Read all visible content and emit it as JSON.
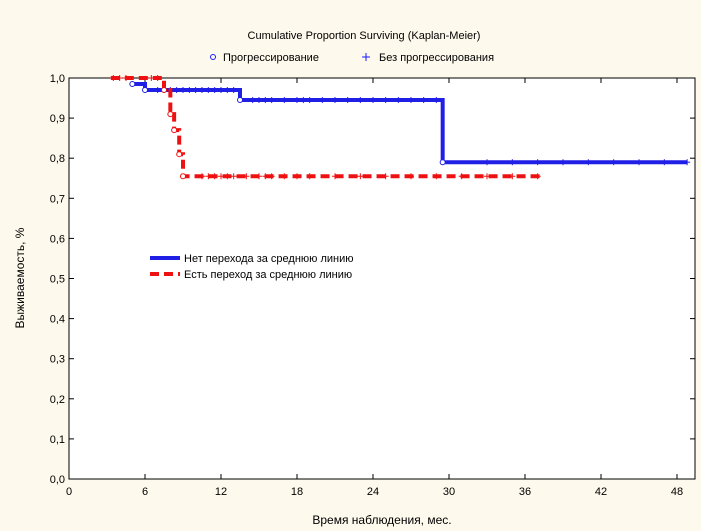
{
  "chart_data": {
    "type": "line",
    "title": "Cumulative Proportion Surviving (Kaplan-Meier)",
    "xlabel": "Время наблюдения, мес.",
    "ylabel": "Выживаемость, %",
    "xlim": [
      0,
      50
    ],
    "ylim": [
      0,
      1.0
    ],
    "x_ticks": [
      0,
      6,
      12,
      18,
      24,
      30,
      36,
      42,
      48
    ],
    "x_tick_labels": [
      "0",
      "6",
      "12",
      "18",
      "24",
      "30",
      "36",
      "42",
      "48"
    ],
    "y_ticks": [
      0,
      0.1,
      0.2,
      0.3,
      0.4,
      0.5,
      0.6,
      0.7,
      0.8,
      0.9,
      1.0
    ],
    "y_tick_labels": [
      "0,0",
      "0,1",
      "0,2",
      "0,3",
      "0,4",
      "0,5",
      "0,6",
      "0,7",
      "0,8",
      "0,9",
      "1,0"
    ],
    "grid": false,
    "marker_legend": [
      {
        "symbol": "o",
        "label": "Прогрессирование",
        "color": "#1a1aff"
      },
      {
        "symbol": "+",
        "label": "Без прогрессирования",
        "color": "#1a1aff"
      }
    ],
    "legend_position": "center-left",
    "series": [
      {
        "name": "Нет перехода за среднюю линию",
        "color": "#1f1fe6",
        "style": "solid",
        "x": [
          5.0,
          5.0,
          6.0,
          6.0,
          13.5,
          13.5,
          29.5,
          29.5,
          48.8
        ],
        "y": [
          0.985,
          0.985,
          0.985,
          0.97,
          0.97,
          0.945,
          0.945,
          0.79,
          0.79
        ],
        "events_x": [
          5.0,
          6.0,
          13.5,
          29.5
        ],
        "events_y": [
          0.985,
          0.97,
          0.945,
          0.79
        ],
        "censored_x": [
          7.0,
          7.5,
          8.0,
          8.5,
          9.0,
          9.5,
          10.0,
          10.5,
          11.0,
          11.5,
          12.0,
          12.5,
          13.0,
          14.5,
          15.0,
          15.5,
          16.0,
          17.0,
          18.0,
          18.5,
          19.0,
          20.0,
          21.0,
          22.0,
          23.0,
          24.0,
          25.0,
          26.0,
          27.0,
          28.0,
          29.0,
          33.0,
          35.0,
          37.0,
          39.0,
          41.0,
          43.0,
          45.0,
          47.0,
          48.8
        ],
        "censored_y": [
          0.97,
          0.97,
          0.97,
          0.97,
          0.97,
          0.97,
          0.97,
          0.97,
          0.97,
          0.97,
          0.97,
          0.97,
          0.97,
          0.945,
          0.945,
          0.945,
          0.945,
          0.945,
          0.945,
          0.945,
          0.945,
          0.945,
          0.945,
          0.945,
          0.945,
          0.945,
          0.945,
          0.945,
          0.945,
          0.945,
          0.945,
          0.79,
          0.79,
          0.79,
          0.79,
          0.79,
          0.79,
          0.79,
          0.79,
          0.79
        ]
      },
      {
        "name": "Есть переход за среднюю линию",
        "color": "#ee1111",
        "style": "dashed",
        "x": [
          3.3,
          7.5,
          7.5,
          8.0,
          8.0,
          8.3,
          8.3,
          8.7,
          8.7,
          9.0,
          9.0,
          37.5
        ],
        "y": [
          1.0,
          1.0,
          0.97,
          0.97,
          0.91,
          0.91,
          0.87,
          0.87,
          0.81,
          0.81,
          0.755,
          0.755
        ],
        "events_x": [
          7.5,
          8.0,
          8.3,
          8.7,
          9.0
        ],
        "events_y": [
          0.97,
          0.91,
          0.87,
          0.81,
          0.755
        ],
        "censored_x": [
          3.5,
          4.0,
          4.5,
          6.5,
          7.0,
          10.5,
          11.0,
          11.5,
          12.0,
          12.5,
          13.0,
          14.0,
          15.0,
          15.5,
          16.0,
          17.0,
          18.0,
          19.0,
          21.0,
          23.0,
          25.0,
          27.0,
          29.0,
          31.0,
          33.0,
          35.0,
          37.0
        ],
        "censored_y": [
          1.0,
          1.0,
          1.0,
          1.0,
          1.0,
          0.755,
          0.755,
          0.755,
          0.755,
          0.755,
          0.755,
          0.755,
          0.755,
          0.755,
          0.755,
          0.755,
          0.755,
          0.755,
          0.755,
          0.755,
          0.755,
          0.755,
          0.755,
          0.755,
          0.755,
          0.755,
          0.755
        ]
      }
    ]
  }
}
